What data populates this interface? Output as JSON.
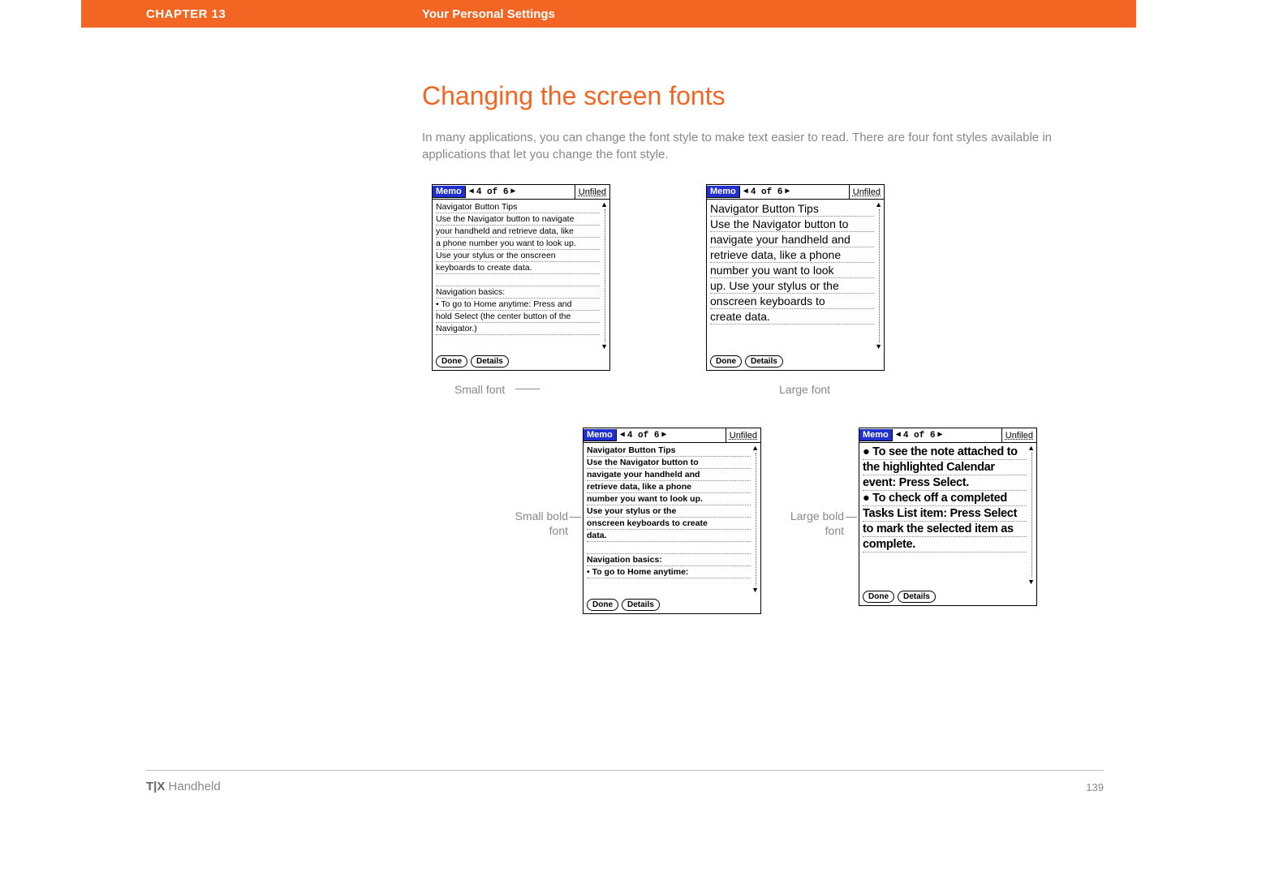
{
  "header": {
    "chapter": "CHAPTER 13",
    "section": "Your Personal Settings"
  },
  "title": "Changing the screen fonts",
  "intro": "In many applications, you can change the font style to make text easier to read. There are four font styles available in applications that let you change the font style.",
  "memo_common": {
    "app_label": "Memo",
    "counter": "4 of 6",
    "category": "Unfiled",
    "done": "Done",
    "details": "Details"
  },
  "samples": {
    "small": {
      "caption": "Small font",
      "lines": [
        "Navigator Button Tips",
        "Use the Navigator button to navigate",
        "your handheld and retrieve data, like",
        "a phone number you want to look up.",
        "Use your stylus or the onscreen",
        "keyboards to create data.",
        "",
        "Navigation basics:",
        "• To go to Home anytime: Press and",
        "hold Select (the center button of the",
        "Navigator.)"
      ]
    },
    "large": {
      "caption": "Large font",
      "lines": [
        "Navigator Button Tips",
        "Use the Navigator button to",
        "navigate your handheld and",
        "retrieve data, like a phone",
        "number you want to look",
        "up. Use your stylus or the",
        "onscreen keyboards to",
        "create data."
      ]
    },
    "smallbold": {
      "caption": "Small bold font",
      "lines": [
        "Navigator Button Tips",
        "Use the Navigator button to",
        "navigate your handheld and",
        "retrieve data, like a phone",
        "number you want to look up.",
        "Use your stylus or the",
        "onscreen keyboards to create",
        "data.",
        "",
        "Navigation basics:",
        "• To go to Home anytime:"
      ]
    },
    "largebold": {
      "caption": "Large bold font",
      "lines": [
        "● To see the note attached to",
        "the highlighted Calendar",
        "event: Press Select.",
        "● To check off a completed",
        "Tasks List item: Press Select",
        "to mark the selected item as",
        "complete."
      ]
    }
  },
  "footer": {
    "product_bold": "T|X",
    "product_rest": " Handheld",
    "page": "139"
  },
  "colors": {
    "orange": "#f26522",
    "grey_text": "#888888",
    "memo_title_bg": "#2030d0"
  }
}
